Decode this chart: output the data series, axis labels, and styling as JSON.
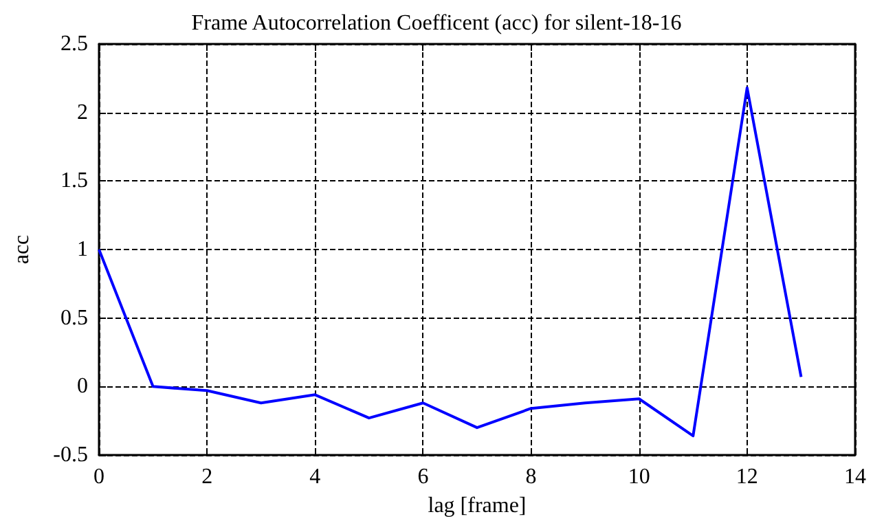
{
  "chart_data": {
    "type": "line",
    "title": "Frame Autocorrelation Coefficent (acc) for silent-18-16",
    "xlabel": "lag [frame]",
    "ylabel": "acc",
    "x": [
      0,
      1,
      2,
      3,
      4,
      5,
      6,
      7,
      8,
      9,
      10,
      11,
      12,
      13
    ],
    "series": [
      {
        "color": "#0000ff",
        "values": [
          1,
          0,
          -0.03,
          -0.12,
          -0.06,
          -0.23,
          -0.12,
          -0.3,
          -0.16,
          -0.12,
          -0.09,
          -0.36,
          2.18,
          0.07
        ]
      }
    ],
    "xlim": [
      0,
      14
    ],
    "xticks": [
      0,
      2,
      4,
      6,
      8,
      10,
      12,
      14
    ],
    "ylim": [
      -0.5,
      2.5
    ],
    "yticks": [
      -0.5,
      0,
      0.5,
      1,
      1.5,
      2,
      2.5
    ],
    "grid": true,
    "marker": "none",
    "line_style": "solid"
  }
}
